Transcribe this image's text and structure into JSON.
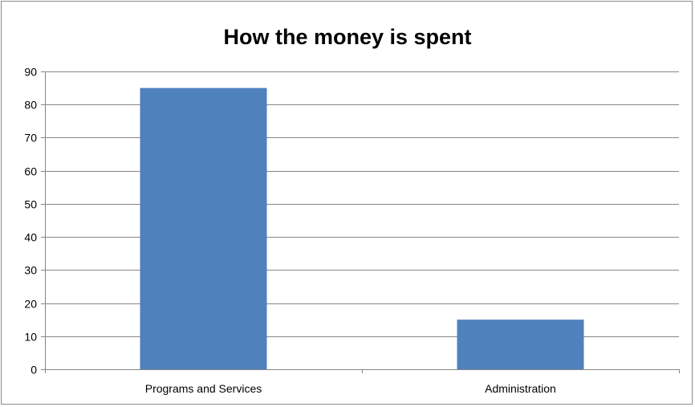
{
  "chart_data": {
    "type": "bar",
    "title": "How the money is spent",
    "categories": [
      "Programs and Services",
      "Administration"
    ],
    "series": [
      {
        "values": [
          85,
          15
        ],
        "color": "#4f81bd"
      }
    ],
    "xlabel": "",
    "ylabel": "",
    "ylim": [
      0,
      90
    ],
    "yticks": [
      0,
      10,
      20,
      30,
      40,
      50,
      60,
      70,
      80,
      90
    ],
    "grid": true,
    "legend": "none"
  }
}
